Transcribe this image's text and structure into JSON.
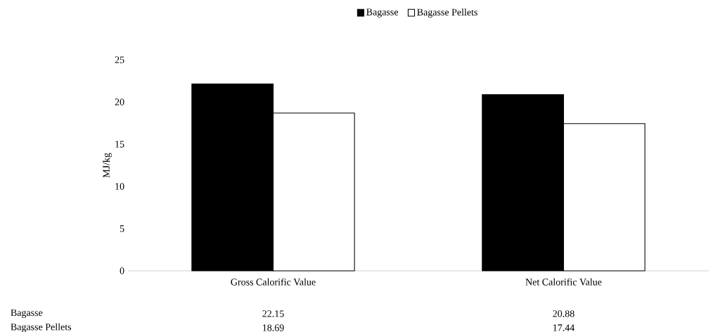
{
  "chart_data": {
    "type": "bar",
    "ylabel": "MJ/kg",
    "categories": [
      "Gross Calorific Value",
      "Net Calorific Value"
    ],
    "series": [
      {
        "name": "Bagasse",
        "color": "#000000",
        "values": [
          22.15,
          20.88
        ]
      },
      {
        "name": "Bagasse Pellets",
        "color": "#ffffff",
        "values": [
          18.69,
          17.44
        ]
      }
    ],
    "ylim": [
      0,
      25
    ],
    "yticks": [
      0,
      5,
      10,
      15,
      20,
      25
    ],
    "grid": false,
    "legend": "top",
    "data_labels": true
  }
}
